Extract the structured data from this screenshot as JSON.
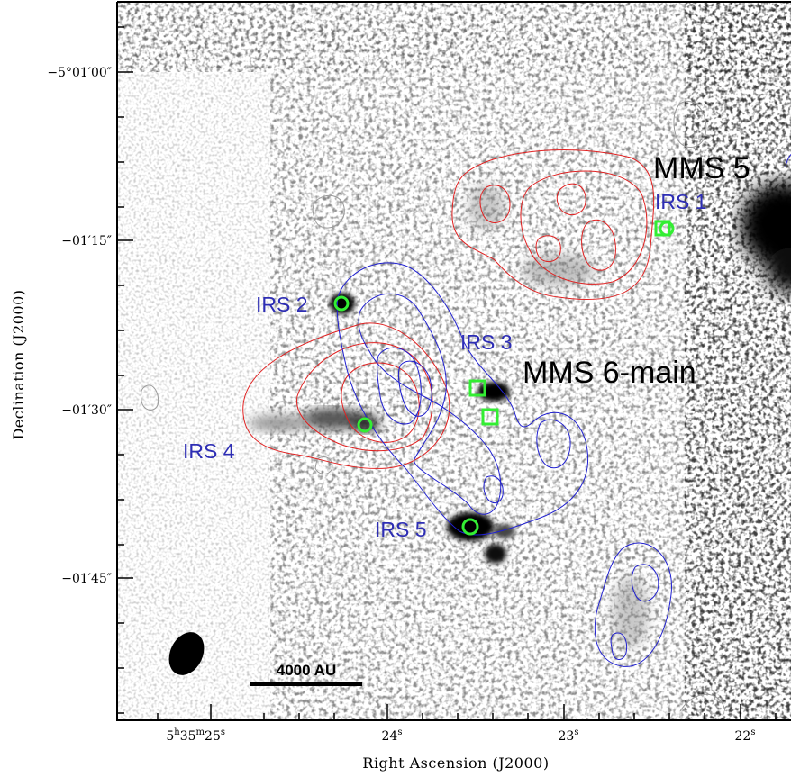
{
  "axes": {
    "xlabel": "Right Ascension (J2000)",
    "ylabel": "Declination (J2000)",
    "x_ticks": [
      {
        "label": "5h35m25s",
        "parts": [
          "5",
          "h",
          "35",
          "m",
          "25",
          "s"
        ]
      },
      {
        "label": "24s",
        "parts": [
          "24",
          "s"
        ]
      },
      {
        "label": "23s",
        "parts": [
          "23",
          "s"
        ]
      },
      {
        "label": "22s",
        "parts": [
          "22",
          "s"
        ]
      }
    ],
    "y_ticks": [
      "−5°01′00″",
      "−01′15″",
      "−01′30″",
      "−01′45″"
    ]
  },
  "sources_large": {
    "mms5": "MMS 5",
    "mms6": "MMS 6-main"
  },
  "sources_irs": {
    "irs1": "IRS 1",
    "irs2": "IRS 2",
    "irs3": "IRS 3",
    "irs4": "IRS 4",
    "irs5": "IRS 5"
  },
  "scale_bar": "4000 AU",
  "colors": {
    "red_contours": "#e02020",
    "blue_contours": "#2020d0",
    "gray_contours": "#9a9a9a",
    "markers": "#33ee33",
    "irs_labels": "#2d2db4"
  }
}
